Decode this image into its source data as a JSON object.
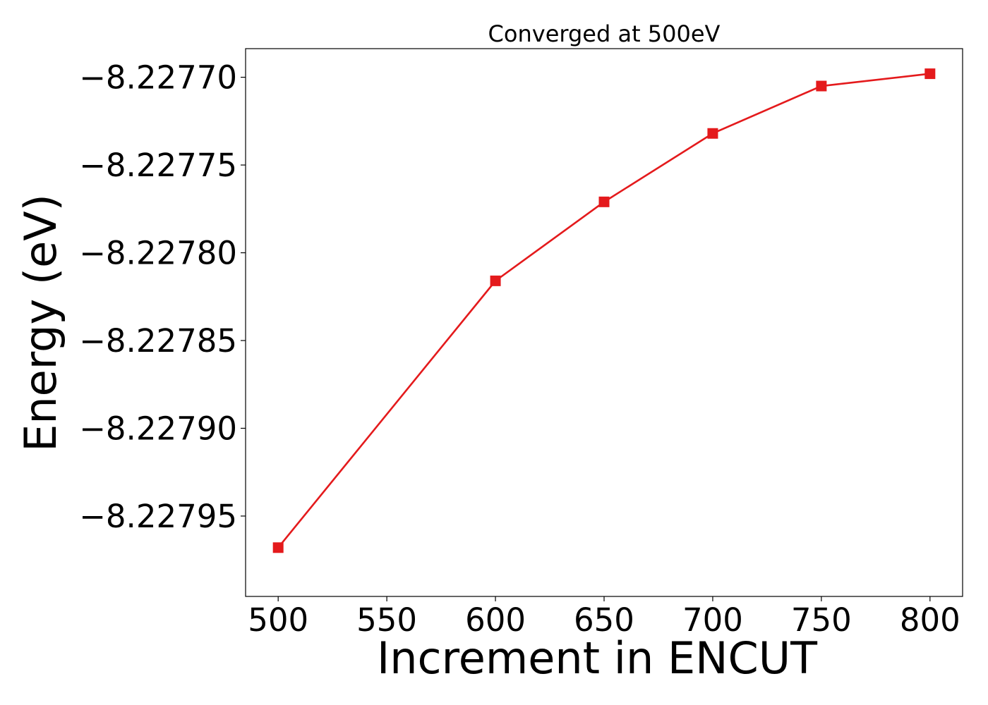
{
  "chart_data": {
    "type": "line",
    "title": "Converged at 500eV",
    "xlabel": "Increment in ENCUT",
    "ylabel": "Energy (eV)",
    "x": [
      500,
      600,
      650,
      700,
      750,
      800
    ],
    "series": [
      {
        "values": [
          -8.227968,
          -8.227816,
          -8.227771,
          -8.227732,
          -8.227705,
          -8.227698
        ],
        "color": "#e41a1c",
        "marker": "square"
      }
    ],
    "xlim": [
      485,
      815
    ],
    "ylim": [
      -8.2279958,
      -8.2276837
    ],
    "xticks": [
      500,
      550,
      600,
      650,
      700,
      750,
      800
    ],
    "xtick_labels": [
      "500",
      "550",
      "600",
      "650",
      "700",
      "750",
      "800"
    ],
    "yticks": [
      -8.2277,
      -8.22775,
      -8.2278,
      -8.22785,
      -8.2279,
      -8.22795
    ],
    "ytick_labels": [
      "−8.22770",
      "−8.22775",
      "−8.22780",
      "−8.22785",
      "−8.22790",
      "−8.22795"
    ],
    "grid": false,
    "legend": false
  }
}
